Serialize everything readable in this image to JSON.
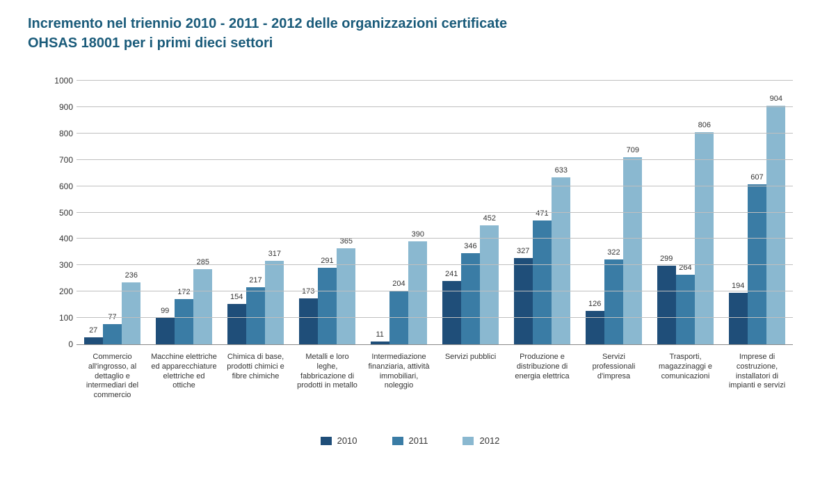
{
  "title_line1": "Incremento nel triennio 2010 - 2011 - 2012 delle organizzazioni certificate",
  "title_line2": "OHSAS 18001 per i primi dieci settori",
  "chart": {
    "type": "bar",
    "ylim": [
      0,
      1000
    ],
    "ytick_step": 100,
    "background_color": "#ffffff",
    "grid_color": "#bfbfbf",
    "title_color": "#1a5b7a",
    "title_fontsize": 20,
    "label_fontsize": 11,
    "bar_width_pct": 30,
    "series": [
      {
        "name": "2010",
        "color": "#1f4e79"
      },
      {
        "name": "2011",
        "color": "#3a7ca5"
      },
      {
        "name": "2012",
        "color": "#8ab8d0"
      }
    ],
    "categories": [
      {
        "label": "Commercio all'ingrosso, al dettaglio e intermediari del commercio",
        "values": [
          27,
          77,
          236
        ]
      },
      {
        "label": "Macchine elettriche ed apparecchiature elettriche ed ottiche",
        "values": [
          99,
          172,
          285
        ]
      },
      {
        "label": "Chimica di base, prodotti chimici e fibre chimiche",
        "values": [
          154,
          217,
          317
        ]
      },
      {
        "label": "Metalli e loro leghe, fabbricazione di prodotti in metallo",
        "values": [
          173,
          291,
          365
        ]
      },
      {
        "label": "Intermediazione finanziaria, attività immobiliari, noleggio",
        "values": [
          11,
          204,
          390
        ]
      },
      {
        "label": "Servizi pubblici",
        "values": [
          241,
          346,
          452
        ]
      },
      {
        "label": "Produzione e distribuzione di energia elettrica",
        "values": [
          327,
          471,
          633
        ]
      },
      {
        "label": "Servizi professionali d'impresa",
        "values": [
          126,
          322,
          709
        ]
      },
      {
        "label": "Trasporti, magazzinaggi e comunicazioni",
        "values": [
          299,
          264,
          806
        ]
      },
      {
        "label": "Imprese di costruzione, installatori di impianti e servizi",
        "values": [
          194,
          607,
          904
        ]
      }
    ]
  },
  "legend_labels": [
    "2010",
    "2011",
    "2012"
  ]
}
